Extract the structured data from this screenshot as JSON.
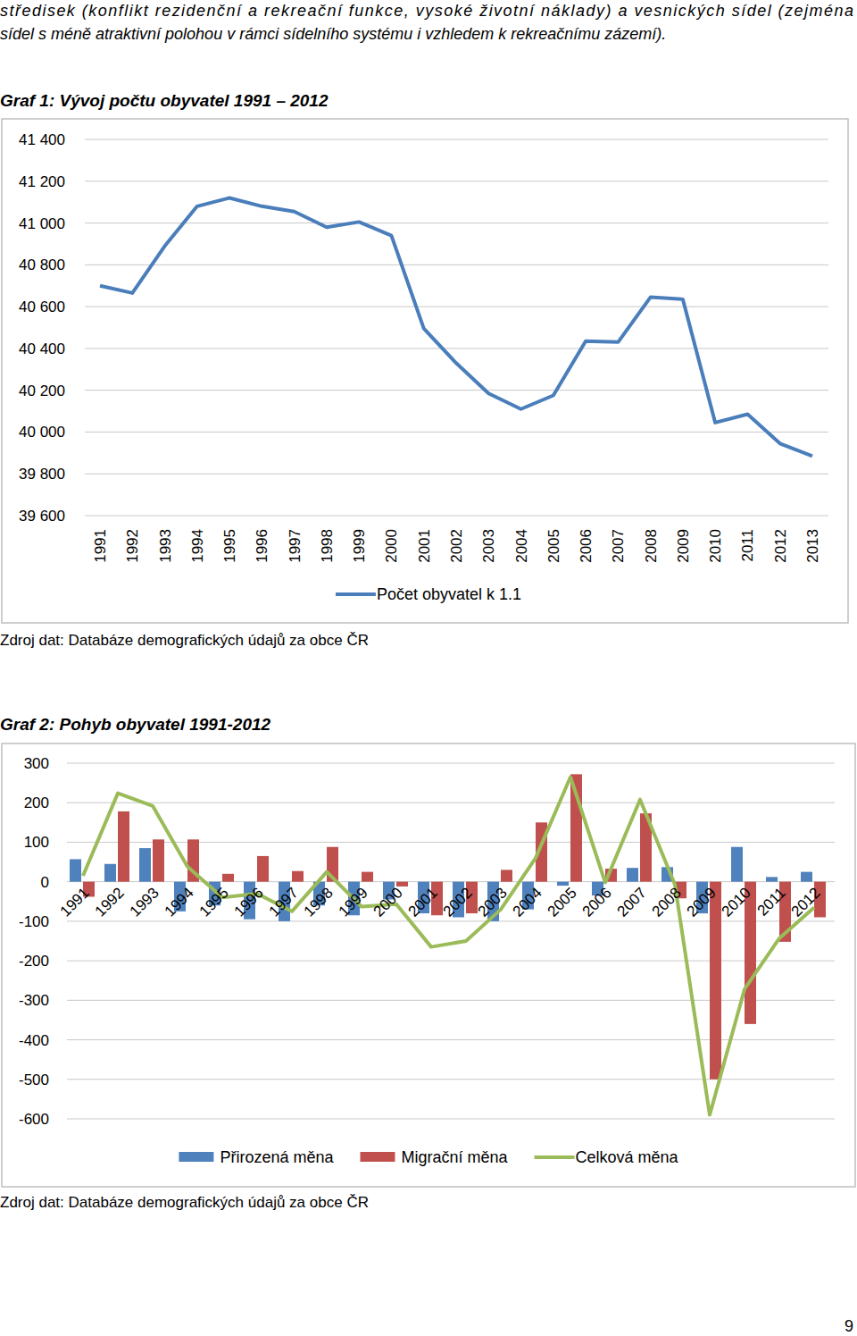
{
  "document": {
    "paragraph_lines": [
      "středisek (konflikt rezidenční a rekreační funkce, vysoké životní náklady) a vesnických sídel (zejména",
      "sídel s méně atraktivní polohou v rámci sídelního systému i vzhledem k rekreačnímu zázemí)."
    ],
    "page_number": "9"
  },
  "chart_data": [
    {
      "type": "line",
      "title": "Graf 1: Vývoj počtu obyvatel 1991 – 2012",
      "source": "Zdroj dat: Databáze demografických údajů za obce ČR",
      "categories": [
        "1991",
        "1992",
        "1993",
        "1994",
        "1995",
        "1996",
        "1997",
        "1998",
        "1999",
        "2000",
        "2001",
        "2002",
        "2003",
        "2004",
        "2005",
        "2006",
        "2007",
        "2008",
        "2009",
        "2010",
        "2011",
        "2012",
        "2013"
      ],
      "series": [
        {
          "name": "Počet obyvatel k 1.1",
          "color": "#4a7ebb",
          "values": [
            40700,
            40665,
            40890,
            41080,
            41120,
            41080,
            41055,
            40980,
            41005,
            40940,
            40495,
            40330,
            40185,
            40110,
            40175,
            40435,
            40430,
            40645,
            40635,
            40045,
            40085,
            39945,
            39885
          ]
        }
      ],
      "ylim": [
        39600,
        41400
      ],
      "yticks": [
        {
          "value": 39600,
          "label": "39 600"
        },
        {
          "value": 39800,
          "label": "39 800"
        },
        {
          "value": 40000,
          "label": "40 000"
        },
        {
          "value": 40200,
          "label": "40 200"
        },
        {
          "value": 40400,
          "label": "40 400"
        },
        {
          "value": 40600,
          "label": "40 600"
        },
        {
          "value": 40800,
          "label": "40 800"
        },
        {
          "value": 41000,
          "label": "41 000"
        },
        {
          "value": 41200,
          "label": "41 200"
        },
        {
          "value": 41400,
          "label": "41 400"
        }
      ],
      "grid": true,
      "legend": "bottom"
    },
    {
      "type": "bar",
      "title": "Graf 2: Pohyb obyvatel 1991-2012",
      "source": "Zdroj dat: Databáze demografických údajů za obce ČR",
      "categories": [
        "1991",
        "1992",
        "1993",
        "1994",
        "1995",
        "1996",
        "1997",
        "1998",
        "1999",
        "2000",
        "2001",
        "2002",
        "2003",
        "2004",
        "2005",
        "2006",
        "2007",
        "2008",
        "2009",
        "2010",
        "2011",
        "2012"
      ],
      "series": [
        {
          "name": "Přirozená měna",
          "color": "#4f81bd",
          "type": "bar",
          "values": [
            57,
            45,
            85,
            -75,
            -60,
            -95,
            -100,
            -60,
            -85,
            -45,
            -80,
            -90,
            -100,
            -70,
            -10,
            -35,
            35,
            37,
            -80,
            88,
            12,
            25
          ]
        },
        {
          "name": "Migrační měna",
          "color": "#c0504d",
          "type": "bar",
          "values": [
            -38,
            178,
            107,
            107,
            20,
            65,
            27,
            88,
            25,
            -12,
            -85,
            -80,
            30,
            150,
            272,
            33,
            173,
            -42,
            -500,
            -360,
            -152,
            -90
          ]
        },
        {
          "name": "Celková měna",
          "color": "#9bbb59",
          "type": "line",
          "values": [
            15,
            224,
            192,
            38,
            -40,
            -30,
            -75,
            25,
            -63,
            -57,
            -165,
            -150,
            -70,
            60,
            265,
            -2,
            208,
            -7,
            -590,
            -272,
            -143,
            -65
          ]
        }
      ],
      "ylim": [
        -600,
        300
      ],
      "yticks": [
        -600,
        -500,
        -400,
        -300,
        -200,
        -100,
        0,
        100,
        200,
        300
      ],
      "grid": true,
      "legend": "bottom"
    }
  ]
}
